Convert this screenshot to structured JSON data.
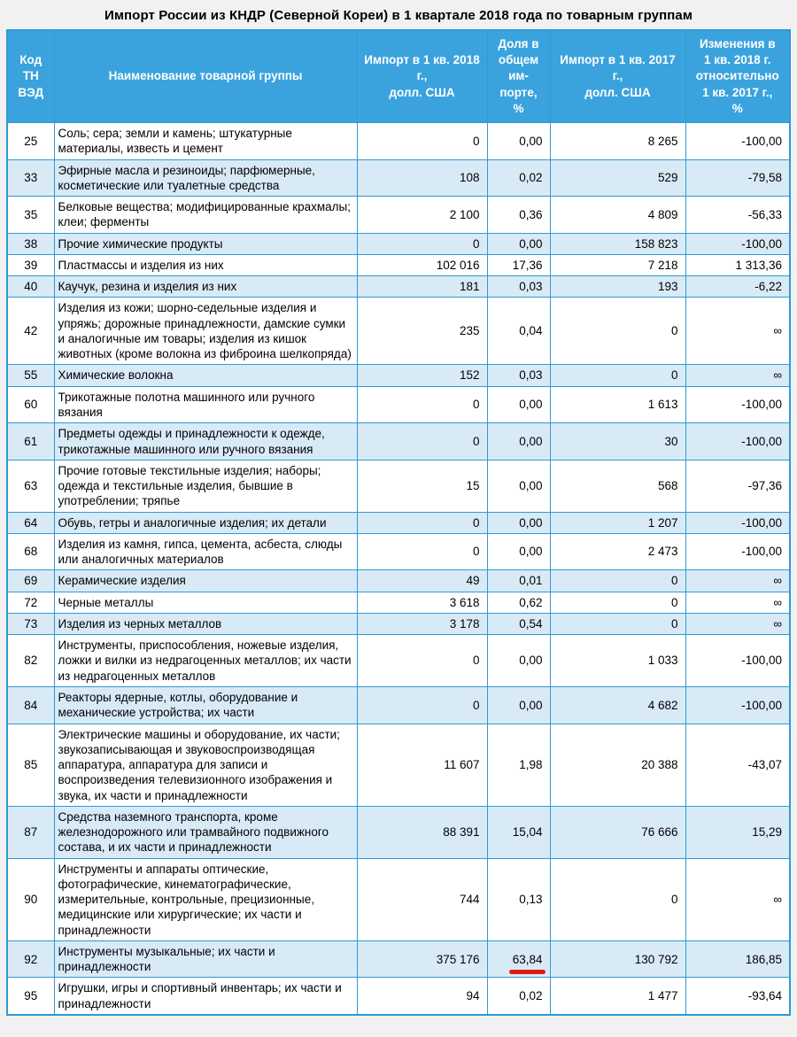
{
  "title": "Импорт России из КНДР (Северной Кореи) в 1 квартале 2018 года по товарным группам",
  "colors": {
    "page_bg": "#f1f1f1",
    "header_bg": "#3aa3dd",
    "header_text": "#ffffff",
    "row_bg": "#ffffff",
    "row_alt_bg": "#d9eaf7",
    "border": "#2f9ad3",
    "annotation_red": "#e01a1a"
  },
  "table": {
    "headers": [
      "Код\nТН\nВЭД",
      "Наименование товарной группы",
      "Импорт в 1 кв. 2018\nг.,\nдолл. США",
      "Доля в\nобщем\nим-\nпорте,\n%",
      "Импорт в 1 кв. 2017\nг.,\nдолл. США",
      "Изменения в\n1 кв. 2018 г.\nотносительно\n1 кв. 2017 г.,\n%"
    ],
    "rows": [
      {
        "code": "25",
        "name": "Соль; сера; земли и камень; штукатурные материалы, известь и цемент",
        "import_2018": "0",
        "share": "0,00",
        "import_2017": "8 265",
        "change": "-100,00"
      },
      {
        "code": "33",
        "name": "Эфирные масла и резиноиды; парфюмерные, косметические или туалетные средства",
        "import_2018": "108",
        "share": "0,02",
        "import_2017": "529",
        "change": "-79,58"
      },
      {
        "code": "35",
        "name": "Белковые вещества; модифицированные крахмалы; клеи; ферменты",
        "import_2018": "2 100",
        "share": "0,36",
        "import_2017": "4 809",
        "change": "-56,33"
      },
      {
        "code": "38",
        "name": "Прочие химические продукты",
        "import_2018": "0",
        "share": "0,00",
        "import_2017": "158 823",
        "change": "-100,00"
      },
      {
        "code": "39",
        "name": "Пластмассы и изделия из них",
        "import_2018": "102 016",
        "share": "17,36",
        "import_2017": "7 218",
        "change": "1 313,36"
      },
      {
        "code": "40",
        "name": "Каучук, резина и изделия из них",
        "import_2018": "181",
        "share": "0,03",
        "import_2017": "193",
        "change": "-6,22"
      },
      {
        "code": "42",
        "name": "Изделия из кожи; шорно-седельные изделия и упряжь; дорожные принадлежности, дамские сумки и аналогичные им товары; изделия из кишок животных (кроме волокна из фиброина шелкопряда)",
        "import_2018": "235",
        "share": "0,04",
        "import_2017": "0",
        "change": "∞"
      },
      {
        "code": "55",
        "name": "Химические волокна",
        "import_2018": "152",
        "share": "0,03",
        "import_2017": "0",
        "change": "∞"
      },
      {
        "code": "60",
        "name": "Трикотажные полотна машинного или ручного вязания",
        "import_2018": "0",
        "share": "0,00",
        "import_2017": "1 613",
        "change": "-100,00"
      },
      {
        "code": "61",
        "name": "Предметы одежды и принадлежности к одежде, трикотажные машинного или ручного вязания",
        "import_2018": "0",
        "share": "0,00",
        "import_2017": "30",
        "change": "-100,00"
      },
      {
        "code": "63",
        "name": "Прочие готовые текстильные изделия; наборы; одежда и текстильные изделия, бывшие в употреблении; тряпье",
        "import_2018": "15",
        "share": "0,00",
        "import_2017": "568",
        "change": "-97,36"
      },
      {
        "code": "64",
        "name": "Обувь, гетры и аналогичные изделия; их детали",
        "import_2018": "0",
        "share": "0,00",
        "import_2017": "1 207",
        "change": "-100,00"
      },
      {
        "code": "68",
        "name": "Изделия из камня, гипса, цемента, асбеста, слюды или аналогичных материалов",
        "import_2018": "0",
        "share": "0,00",
        "import_2017": "2 473",
        "change": "-100,00"
      },
      {
        "code": "69",
        "name": "Керамические изделия",
        "import_2018": "49",
        "share": "0,01",
        "import_2017": "0",
        "change": "∞"
      },
      {
        "code": "72",
        "name": "Черные металлы",
        "import_2018": "3 618",
        "share": "0,62",
        "import_2017": "0",
        "change": "∞"
      },
      {
        "code": "73",
        "name": "Изделия из черных металлов",
        "import_2018": "3 178",
        "share": "0,54",
        "import_2017": "0",
        "change": "∞"
      },
      {
        "code": "82",
        "name": "Инструменты, приспособления, ножевые изделия, ложки и вилки из недрагоценных металлов; их части из недрагоценных металлов",
        "import_2018": "0",
        "share": "0,00",
        "import_2017": "1 033",
        "change": "-100,00"
      },
      {
        "code": "84",
        "name": "Реакторы ядерные, котлы, оборудование и механические устройства; их части",
        "import_2018": "0",
        "share": "0,00",
        "import_2017": "4 682",
        "change": "-100,00"
      },
      {
        "code": "85",
        "name": "Электрические машины и оборудование, их части; звукозаписывающая и звуковоспроизводящая аппаратура, аппаратура для записи и воспроизведения телевизионного изображения и звука, их части и принадлежности",
        "import_2018": "11 607",
        "share": "1,98",
        "import_2017": "20 388",
        "change": "-43,07"
      },
      {
        "code": "87",
        "name": "Средства наземного транспорта, кроме железнодорожного или трамвайного подвижного состава, и их части и принадлежности",
        "import_2018": "88 391",
        "share": "15,04",
        "import_2017": "76 666",
        "change": "15,29"
      },
      {
        "code": "90",
        "name": "Инструменты и аппараты оптические, фотографические, кинематографические, измерительные, контрольные, прецизионные, медицинские или хирургические; их части и принадлежности",
        "import_2018": "744",
        "share": "0,13",
        "import_2017": "0",
        "change": "∞"
      },
      {
        "code": "92",
        "name": "Инструменты музыкальные; их части и принадлежности",
        "import_2018": "375 176",
        "share": "63,84",
        "import_2017": "130 792",
        "change": "186,85",
        "share_underlined": true
      },
      {
        "code": "95",
        "name": "Игрушки, игры и спортивный инвентарь; их части и принадлежности",
        "import_2018": "94",
        "share": "0,02",
        "import_2017": "1 477",
        "change": "-93,64"
      }
    ]
  },
  "annotation": {
    "type": "red-underline",
    "target_row_code": "92",
    "target_column": "share"
  }
}
